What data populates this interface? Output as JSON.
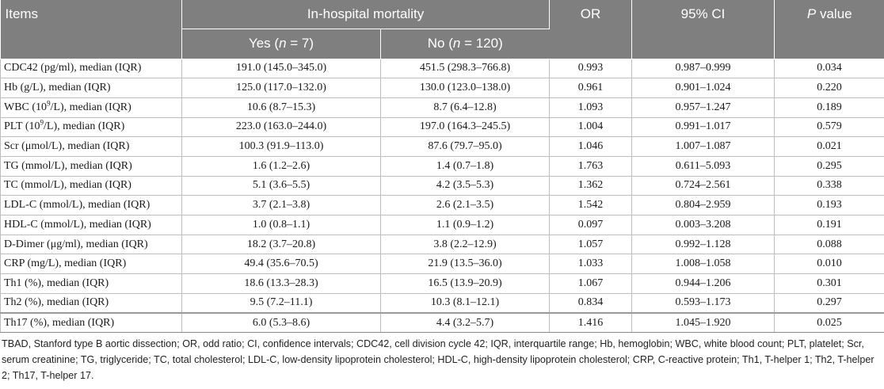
{
  "header": {
    "items": "Items",
    "group": "In-hospital mortality",
    "or": "OR",
    "ci": "95% CI",
    "p_italic": "P",
    "p_rest": " value",
    "yes_label": "Yes (",
    "yes_n": "n",
    "yes_count": " = 7)",
    "no_label": "No (",
    "no_n": "n",
    "no_count": " = 120)"
  },
  "rows": [
    {
      "item": "CDC42 (pg/ml), median (IQR)",
      "yes": "191.0 (145.0–345.0)",
      "no": "451.5 (298.3–766.8)",
      "or": "0.993",
      "ci": "0.987–0.999",
      "p": "0.034"
    },
    {
      "item": "Hb (g/L), median (IQR)",
      "yes": "125.0 (117.0–132.0)",
      "no": "130.0 (123.0–138.0)",
      "or": "0.961",
      "ci": "0.901–1.024",
      "p": "0.220"
    },
    {
      "item_pre": "WBC (10",
      "item_sup": "9",
      "item_post": "/L), median (IQR)",
      "yes": "10.6 (8.7–15.3)",
      "no": "8.7 (6.4–12.8)",
      "or": "1.093",
      "ci": "0.957–1.247",
      "p": "0.189"
    },
    {
      "item_pre": "PLT (10",
      "item_sup": "9",
      "item_post": "/L), median (IQR)",
      "yes": "223.0 (163.0–244.0)",
      "no": "197.0 (164.3–245.5)",
      "or": "1.004",
      "ci": "0.991–1.017",
      "p": "0.579"
    },
    {
      "item": "Scr (μmol/L), median (IQR)",
      "yes": "100.3 (91.9–113.0)",
      "no": "87.6 (79.7–95.0)",
      "or": "1.046",
      "ci": "1.007–1.087",
      "p": "0.021"
    },
    {
      "item": "TG (mmol/L), median (IQR)",
      "yes": "1.6 (1.2–2.6)",
      "no": "1.4 (0.7–1.8)",
      "or": "1.763",
      "ci": "0.611–5.093",
      "p": "0.295"
    },
    {
      "item": "TC (mmol/L), median (IQR)",
      "yes": "5.1 (3.6–5.5)",
      "no": "4.2 (3.5–5.3)",
      "or": "1.362",
      "ci": "0.724–2.561",
      "p": "0.338"
    },
    {
      "item": "LDL-C (mmol/L), median (IQR)",
      "yes": "3.7 (2.1–3.8)",
      "no": "2.6 (2.1–3.5)",
      "or": "1.542",
      "ci": "0.804–2.959",
      "p": "0.193"
    },
    {
      "item": "HDL-C (mmol/L), median (IQR)",
      "yes": "1.0 (0.8–1.1)",
      "no": "1.1 (0.9–1.2)",
      "or": "0.097",
      "ci": "0.003–3.208",
      "p": "0.191"
    },
    {
      "item": "D-Dimer (μg/ml), median (IQR)",
      "yes": "18.2 (3.7–20.8)",
      "no": "3.8 (2.2–12.9)",
      "or": "1.057",
      "ci": "0.992–1.128",
      "p": "0.088"
    },
    {
      "item": "CRP (mg/L), median (IQR)",
      "yes": "49.4 (35.6–70.5)",
      "no": "21.9 (13.5–36.0)",
      "or": "1.033",
      "ci": "1.008–1.058",
      "p": "0.010"
    },
    {
      "item": "Th1 (%), median (IQR)",
      "yes": "18.6 (13.3–28.3)",
      "no": "16.5 (13.9–20.9)",
      "or": "1.067",
      "ci": "0.944–1.206",
      "p": "0.301"
    },
    {
      "item": "Th2 (%), median (IQR)",
      "yes": "9.5 (7.2–11.1)",
      "no": "10.3 (8.1–12.1)",
      "or": "0.834",
      "ci": "0.593–1.173",
      "p": "0.297"
    },
    {
      "item": "Th17 (%), median (IQR)",
      "yes": "6.0 (5.3–8.6)",
      "no": "4.4 (3.2–5.7)",
      "or": "1.416",
      "ci": "1.045–1.920",
      "p": "0.025"
    }
  ],
  "footnote": "TBAD, Stanford type B aortic dissection; OR, odd ratio; CI, confidence intervals; CDC42, cell division cycle 42; IQR, interquartile range; Hb, hemoglobin; WBC, white blood count; PLT, platelet; Scr, serum creatinine; TG, triglyceride; TC, total cholesterol; LDL-C, low-density lipoprotein cholesterol; HDL-C, high-density lipoprotein cholesterol; CRP, C-reactive protein; Th1, T-helper 1; Th2, T-helper 2; Th17, T-helper 17.",
  "colors": {
    "header_bg": "#7f7f7f",
    "header_text": "#ffffff",
    "grid": "#bdbdbd"
  }
}
